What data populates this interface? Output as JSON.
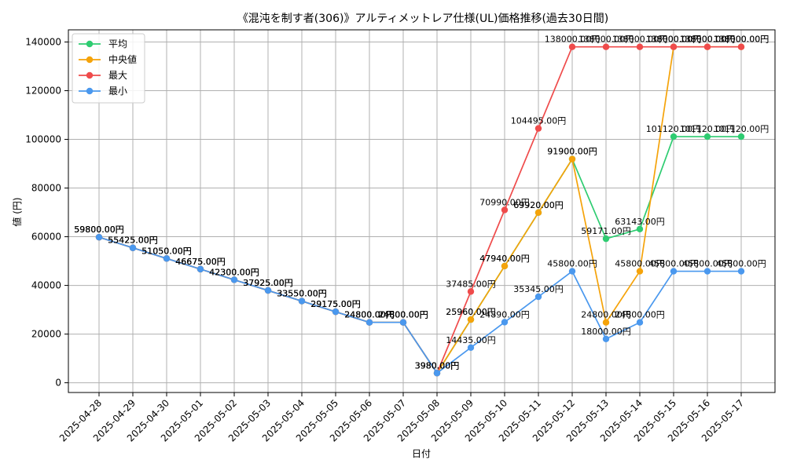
{
  "chart_data": {
    "type": "line",
    "title": "《混沌を制す者(306)》アルティメットレア仕様(UL)価格推移(過去30日間)",
    "xlabel": "日付",
    "ylabel": "値 (円)",
    "ylim": [
      -4000,
      145000
    ],
    "yticks": [
      0,
      20000,
      40000,
      60000,
      80000,
      100000,
      120000,
      140000
    ],
    "grid": true,
    "legend_position": "top-left",
    "value_suffix": "円",
    "categories": [
      "2025-04-28",
      "2025-04-29",
      "2025-04-30",
      "2025-05-01",
      "2025-05-02",
      "2025-05-03",
      "2025-05-04",
      "2025-05-05",
      "2025-05-06",
      "2025-05-07",
      "2025-05-08",
      "2025-05-09",
      "2025-05-10",
      "2025-05-11",
      "2025-05-12",
      "2025-05-13",
      "2025-05-14",
      "2025-05-15",
      "2025-05-16",
      "2025-05-17"
    ],
    "series": [
      {
        "name": "平均",
        "color": "#2ecc71",
        "values": [
          59800,
          55425,
          51050,
          46675,
          42300,
          37925,
          33550,
          29175,
          24800,
          24800,
          3980,
          25960,
          47940,
          69920,
          91900,
          59171,
          63143,
          101120,
          101120,
          101120
        ]
      },
      {
        "name": "中央値",
        "color": "#f5a30a",
        "values": [
          59800,
          55425,
          51050,
          46675,
          42300,
          37925,
          33550,
          29175,
          24800,
          24800,
          3980,
          25960,
          47940,
          69920,
          91900,
          24800,
          45800,
          138000,
          138000,
          138000
        ]
      },
      {
        "name": "最大",
        "color": "#ef4b4b",
        "values": [
          59800,
          55425,
          51050,
          46675,
          42300,
          37925,
          33550,
          29175,
          24800,
          24800,
          3980,
          37485,
          70990,
          104495,
          138000,
          138000,
          138000,
          138000,
          138000,
          138000
        ]
      },
      {
        "name": "最小",
        "color": "#4a98ee",
        "values": [
          59800,
          55425,
          51050,
          46675,
          42300,
          37925,
          33550,
          29175,
          24800,
          24800,
          3980,
          14435,
          24890,
          35345,
          45800,
          18000,
          24800,
          45800,
          45800,
          45800
        ]
      }
    ]
  }
}
